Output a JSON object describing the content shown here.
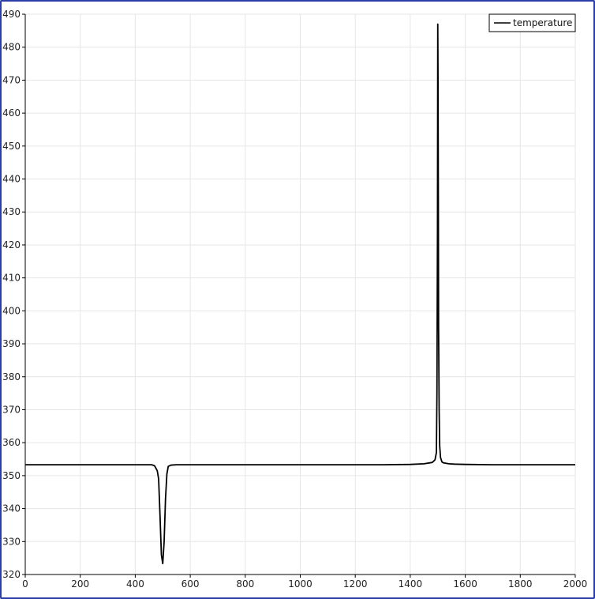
{
  "chart_data": {
    "type": "line",
    "title": "",
    "xlabel": "",
    "ylabel": "",
    "xlim": [
      0,
      2000
    ],
    "ylim": [
      320,
      490
    ],
    "x_ticks": [
      0,
      200,
      400,
      600,
      800,
      1000,
      1200,
      1400,
      1600,
      1800,
      2000
    ],
    "y_ticks": [
      320,
      330,
      340,
      350,
      360,
      370,
      380,
      390,
      400,
      410,
      420,
      430,
      440,
      450,
      460,
      470,
      480,
      490
    ],
    "grid": true,
    "legend_position": "top-right",
    "colors": {
      "line": "#000000",
      "grid": "#e6e6e6",
      "axis": "#000000",
      "frame": "#2a3da8"
    },
    "series": [
      {
        "name": "temperature",
        "x": [
          0,
          100,
          200,
          300,
          400,
          460,
          470,
          480,
          485,
          490,
          495,
          500,
          505,
          510,
          515,
          520,
          530,
          550,
          600,
          700,
          800,
          900,
          1000,
          1100,
          1200,
          1300,
          1400,
          1450,
          1480,
          1490,
          1495,
          1497,
          1499,
          1500,
          1501,
          1502,
          1503,
          1505,
          1507,
          1510,
          1515,
          1520,
          1540,
          1560,
          1600,
          1700,
          1800,
          1900,
          2000
        ],
        "y": [
          353.3,
          353.3,
          353.3,
          353.3,
          353.3,
          353.3,
          353.0,
          351.5,
          349.0,
          338.0,
          326.0,
          323.3,
          330.0,
          343.0,
          350.5,
          352.8,
          353.2,
          353.3,
          353.3,
          353.3,
          353.3,
          353.3,
          353.3,
          353.3,
          353.3,
          353.3,
          353.4,
          353.6,
          354.0,
          354.8,
          357.0,
          375.0,
          425.0,
          487.0,
          470.0,
          436.0,
          395.0,
          370.0,
          359.0,
          355.5,
          354.2,
          353.9,
          353.6,
          353.5,
          353.4,
          353.3,
          353.3,
          353.3,
          353.3
        ]
      }
    ]
  }
}
